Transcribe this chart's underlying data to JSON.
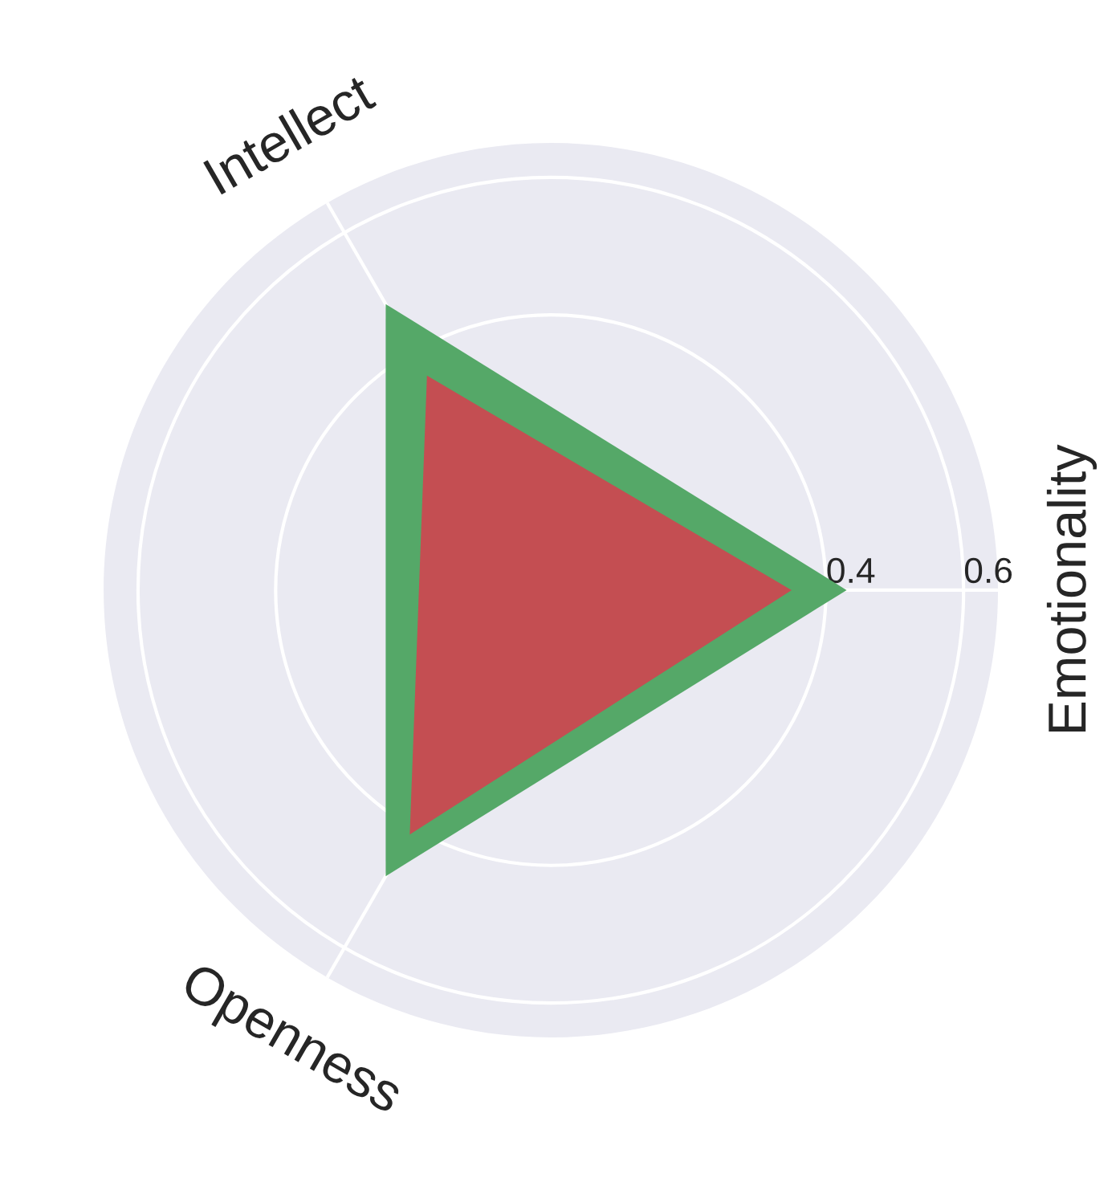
{
  "chart_data": {
    "type": "radar",
    "categories": [
      "Emotionality",
      "Openness",
      "Intellect"
    ],
    "series": [
      {
        "color": "#55a868",
        "values": [
          0.43,
          0.48,
          0.48
        ]
      },
      {
        "color": "#c44e52",
        "values": [
          0.35,
          0.41,
          0.36
        ]
      }
    ],
    "ylim": [
      0,
      0.65
    ],
    "yticks": [
      0.4,
      0.6
    ],
    "grid": true
  }
}
